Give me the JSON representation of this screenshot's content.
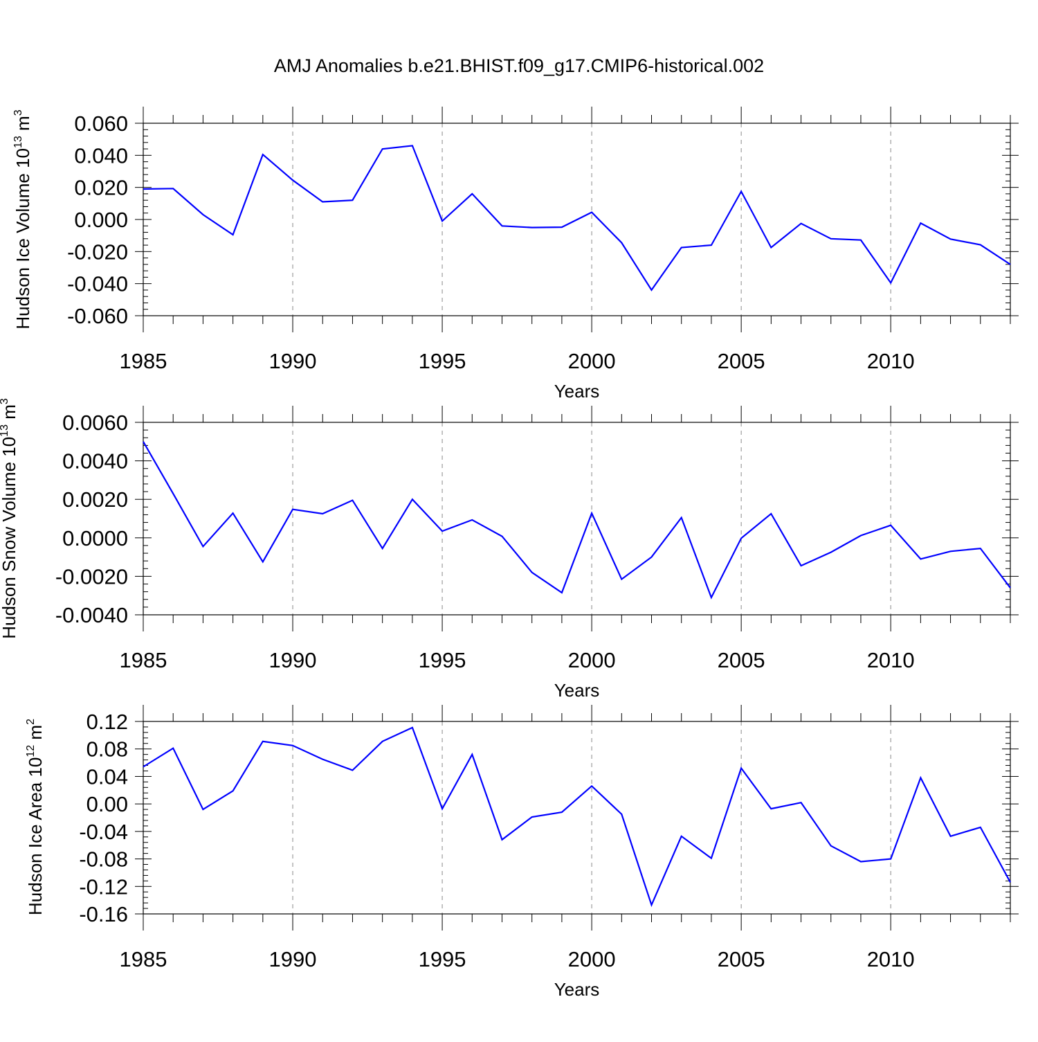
{
  "figure": {
    "title": "AMJ Anomalies b.e21.BHIST.f09_g17.CMIP6-historical.002"
  },
  "chart_data": [
    {
      "type": "line",
      "ylabel": "Hudson Ice Volume",
      "ylabel_base": "10",
      "ylabel_exp": "13",
      "ylabel_unit": "m",
      "ylabel_unit_exp": "3",
      "xlabel": "Years",
      "xlim": [
        1985,
        2014
      ],
      "ylim": [
        -0.06,
        0.06
      ],
      "xticks": [
        1985,
        1990,
        1995,
        2000,
        2005,
        2010
      ],
      "xtick_labels": [
        "1985",
        "1990",
        "1995",
        "2000",
        "2005",
        "2010"
      ],
      "yticks": [
        -0.06,
        -0.04,
        -0.02,
        0.0,
        0.02,
        0.04,
        0.06
      ],
      "ytick_labels": [
        "-0.060",
        "-0.040",
        "-0.020",
        "0.000",
        "0.020",
        "0.040",
        "0.060"
      ],
      "grid": "vertical dashed at major x ticks",
      "line_color": "#0000ff",
      "x": [
        1985,
        1986,
        1987,
        1988,
        1989,
        1990,
        1991,
        1992,
        1993,
        1994,
        1995,
        1996,
        1997,
        1998,
        1999,
        2000,
        2001,
        2002,
        2003,
        2004,
        2005,
        2006,
        2007,
        2008,
        2009,
        2010,
        2011,
        2012,
        2013,
        2014
      ],
      "values": [
        0.019,
        0.0193,
        0.003,
        -0.0095,
        0.0405,
        0.0245,
        0.011,
        0.012,
        0.044,
        0.046,
        -0.001,
        0.016,
        -0.004,
        -0.005,
        -0.0048,
        0.0045,
        -0.0145,
        -0.044,
        -0.0175,
        -0.016,
        0.0175,
        -0.0175,
        -0.0025,
        -0.012,
        -0.0128,
        -0.0395,
        -0.0023,
        -0.0122,
        -0.0158,
        -0.028
      ]
    },
    {
      "type": "line",
      "ylabel": "Hudson Snow Volume",
      "ylabel_base": "10",
      "ylabel_exp": "13",
      "ylabel_unit": "m",
      "ylabel_unit_exp": "3",
      "xlabel": "Years",
      "xlim": [
        1985,
        2014
      ],
      "ylim": [
        -0.004,
        0.006
      ],
      "xticks": [
        1985,
        1990,
        1995,
        2000,
        2005,
        2010
      ],
      "xtick_labels": [
        "1985",
        "1990",
        "1995",
        "2000",
        "2005",
        "2010"
      ],
      "yticks": [
        -0.004,
        -0.002,
        0.0,
        0.002,
        0.004,
        0.006
      ],
      "ytick_labels": [
        "-0.0040",
        "-0.0020",
        "0.0000",
        "0.0020",
        "0.0040",
        "0.0060"
      ],
      "grid": "vertical dashed at major x ticks",
      "line_color": "#0000ff",
      "x": [
        1985,
        1986,
        1987,
        1988,
        1989,
        1990,
        1991,
        1992,
        1993,
        1994,
        1995,
        1996,
        1997,
        1998,
        1999,
        2000,
        2001,
        2002,
        2003,
        2004,
        2005,
        2006,
        2007,
        2008,
        2009,
        2010,
        2011,
        2012,
        2013,
        2014
      ],
      "values": [
        0.005,
        0.0023,
        -0.00045,
        0.00128,
        -0.00125,
        0.00148,
        0.00125,
        0.00195,
        -0.00055,
        0.002,
        0.00035,
        0.00093,
        8e-05,
        -0.0018,
        -0.00285,
        0.00128,
        -0.00215,
        -0.001,
        0.00105,
        -0.0031,
        -2e-05,
        0.00125,
        -0.00145,
        -0.00075,
        0.00012,
        0.00065,
        -0.0011,
        -0.0007,
        -0.00055,
        -0.0026
      ]
    },
    {
      "type": "line",
      "ylabel": "Hudson Ice Area",
      "ylabel_base": "10",
      "ylabel_exp": "12",
      "ylabel_unit": "m",
      "ylabel_unit_exp": "2",
      "xlabel": "Years",
      "xlim": [
        1985,
        2014
      ],
      "ylim": [
        -0.16,
        0.12
      ],
      "xticks": [
        1985,
        1990,
        1995,
        2000,
        2005,
        2010
      ],
      "xtick_labels": [
        "1985",
        "1990",
        "1995",
        "2000",
        "2005",
        "2010"
      ],
      "yticks": [
        -0.16,
        -0.12,
        -0.08,
        -0.04,
        0.0,
        0.04,
        0.08,
        0.12
      ],
      "ytick_labels": [
        "-0.16",
        "-0.12",
        "-0.08",
        "-0.04",
        "0.00",
        "0.04",
        "0.08",
        "0.12"
      ],
      "grid": "vertical dashed at major x ticks",
      "line_color": "#0000ff",
      "x": [
        1985,
        1986,
        1987,
        1988,
        1989,
        1990,
        1991,
        1992,
        1993,
        1994,
        1995,
        1996,
        1997,
        1998,
        1999,
        2000,
        2001,
        2002,
        2003,
        2004,
        2005,
        2006,
        2007,
        2008,
        2009,
        2010,
        2011,
        2012,
        2013,
        2014
      ],
      "values": [
        0.054,
        0.081,
        -0.008,
        0.019,
        0.091,
        0.085,
        0.065,
        0.049,
        0.091,
        0.111,
        -0.007,
        0.072,
        -0.052,
        -0.019,
        -0.012,
        0.026,
        -0.015,
        -0.147,
        -0.047,
        -0.079,
        0.052,
        -0.007,
        0.002,
        -0.061,
        -0.084,
        -0.08,
        0.038,
        -0.047,
        -0.034,
        -0.114
      ]
    }
  ]
}
